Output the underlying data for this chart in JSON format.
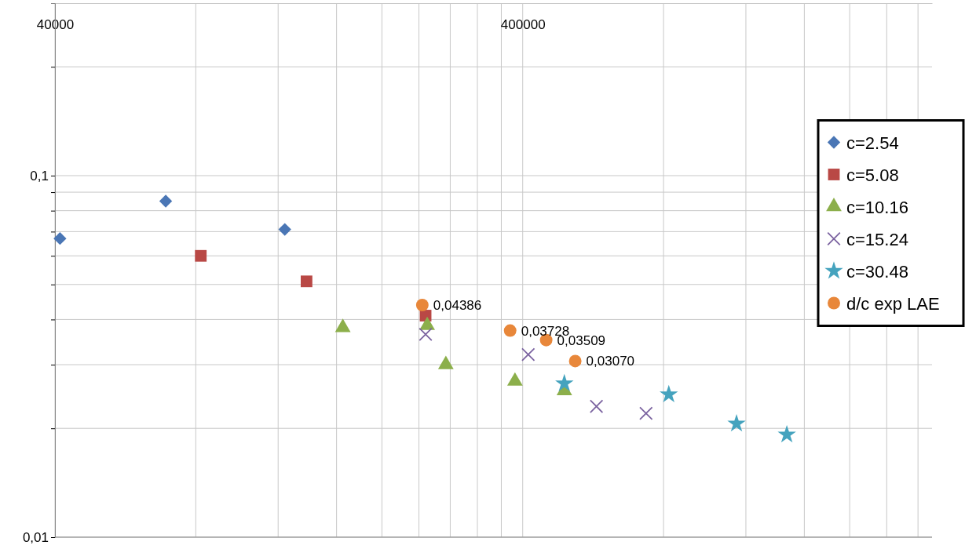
{
  "chart_data": {
    "type": "scatter",
    "log": "xy",
    "grid": true,
    "legend": "right",
    "xlim": [
      40000,
      3000000
    ],
    "ylim": [
      0.01,
      0.3
    ],
    "xticks": [
      {
        "value": 40000,
        "label": "40000"
      },
      {
        "value": 80000,
        "label": null
      },
      {
        "value": 120000,
        "label": null
      },
      {
        "value": 160000,
        "label": null
      },
      {
        "value": 200000,
        "label": null
      },
      {
        "value": 240000,
        "label": null
      },
      {
        "value": 280000,
        "label": null
      },
      {
        "value": 320000,
        "label": null
      },
      {
        "value": 360000,
        "label": null
      },
      {
        "value": 400000,
        "label": "400000"
      },
      {
        "value": 800000,
        "label": null
      },
      {
        "value": 1200000,
        "label": null
      },
      {
        "value": 1600000,
        "label": null
      },
      {
        "value": 2000000,
        "label": null
      },
      {
        "value": 2400000,
        "label": null
      },
      {
        "value": 2800000,
        "label": null
      }
    ],
    "yticks": [
      {
        "value": 0.01,
        "label": "0,01"
      },
      {
        "value": 0.02,
        "label": null
      },
      {
        "value": 0.03,
        "label": null
      },
      {
        "value": 0.04,
        "label": null
      },
      {
        "value": 0.05,
        "label": null
      },
      {
        "value": 0.06,
        "label": null
      },
      {
        "value": 0.07,
        "label": null
      },
      {
        "value": 0.08,
        "label": null
      },
      {
        "value": 0.09,
        "label": null
      },
      {
        "value": 0.1,
        "label": "0,1"
      },
      {
        "value": 0.2,
        "label": null
      }
    ],
    "series": [
      {
        "name": "c=2.54",
        "color": "#4a76b5",
        "marker": "diamond",
        "x": [
          41000,
          69000,
          124000
        ],
        "values": [
          0.067,
          0.085,
          0.071
        ]
      },
      {
        "name": "c=5.08",
        "color": "#b94845",
        "marker": "square",
        "x": [
          82000,
          138000,
          248000
        ],
        "values": [
          0.06,
          0.051,
          0.041
        ]
      },
      {
        "name": "c=10.16",
        "color": "#8caf4b",
        "marker": "triangle",
        "x": [
          165000,
          250000,
          274000,
          385000,
          491000
        ],
        "values": [
          0.038,
          0.0385,
          0.03,
          0.027,
          0.0254
        ]
      },
      {
        "name": "c=15.24",
        "color": "#7b63a0",
        "marker": "cross",
        "x": [
          248000,
          411000,
          575000,
          734000
        ],
        "values": [
          0.0364,
          0.032,
          0.023,
          0.022
        ]
      },
      {
        "name": "c=30.48",
        "color": "#45a3be",
        "marker": "star",
        "x": [
          491000,
          821000,
          1146000,
          1468000
        ],
        "values": [
          0.0266,
          0.0248,
          0.0206,
          0.0192
        ]
      },
      {
        "name": "d/c exp LAE",
        "color": "#e8873a",
        "marker": "circle",
        "x": [
          244000,
          376000,
          449000,
          518000
        ],
        "values": [
          0.04386,
          0.03728,
          0.03509,
          0.0307
        ],
        "value_labels": [
          "0,04386",
          "0,03728",
          "0,03509",
          "0,03070"
        ]
      }
    ]
  }
}
